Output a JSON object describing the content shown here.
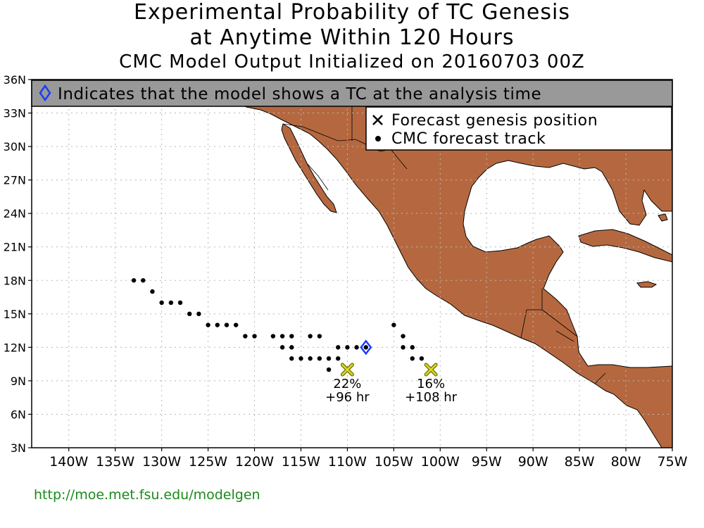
{
  "title": {
    "line1": "Experimental Probability of TC Genesis",
    "line2": "at Anytime Within 120 Hours",
    "line3": "CMC Model Output Initialized on 20160703 00Z"
  },
  "banner": {
    "text": "Indicates that the model shows a TC at the analysis time",
    "icon": "blue-diamond-icon"
  },
  "legend": {
    "genesis_label": "Forecast genesis position",
    "genesis_icon": "x-mark-icon",
    "track_label": "CMC forecast track",
    "track_icon": "dot-icon"
  },
  "axes": {
    "lat_min": 3,
    "lat_max": 36,
    "lon_min": -144,
    "lon_max": -75,
    "lat_labels": [
      {
        "v": 36,
        "t": "36N"
      },
      {
        "v": 33,
        "t": "33N"
      },
      {
        "v": 30,
        "t": "30N"
      },
      {
        "v": 27,
        "t": "27N"
      },
      {
        "v": 24,
        "t": "24N"
      },
      {
        "v": 21,
        "t": "21N"
      },
      {
        "v": 18,
        "t": "18N"
      },
      {
        "v": 15,
        "t": "15N"
      },
      {
        "v": 12,
        "t": "12N"
      },
      {
        "v": 9,
        "t": "9N"
      },
      {
        "v": 6,
        "t": "6N"
      },
      {
        "v": 3,
        "t": "3N"
      }
    ],
    "lon_labels": [
      {
        "v": -140,
        "t": "140W"
      },
      {
        "v": -135,
        "t": "135W"
      },
      {
        "v": -130,
        "t": "130W"
      },
      {
        "v": -125,
        "t": "125W"
      },
      {
        "v": -120,
        "t": "120W"
      },
      {
        "v": -115,
        "t": "115W"
      },
      {
        "v": -110,
        "t": "110W"
      },
      {
        "v": -105,
        "t": "105W"
      },
      {
        "v": -100,
        "t": "100W"
      },
      {
        "v": -95,
        "t": "95W"
      },
      {
        "v": -90,
        "t": "90W"
      },
      {
        "v": -85,
        "t": "85W"
      },
      {
        "v": -80,
        "t": "80W"
      },
      {
        "v": -75,
        "t": "75W"
      }
    ]
  },
  "colors": {
    "land": "#b5683f",
    "banner_bg": "#999999",
    "diamond": "#1a3cff",
    "genesis_fill": "#d8d820",
    "grid": "#b8b8b8"
  },
  "tracks": [
    [
      [
        -108,
        12
      ],
      [
        -109,
        12
      ],
      [
        -110,
        12
      ],
      [
        -111,
        12
      ],
      [
        -111,
        11
      ],
      [
        -112,
        11
      ],
      [
        -113,
        11
      ],
      [
        -114,
        11
      ],
      [
        -115,
        11
      ],
      [
        -116,
        11
      ],
      [
        -116,
        12
      ],
      [
        -116,
        13
      ],
      [
        -117,
        13
      ],
      [
        -117,
        12
      ],
      [
        -118,
        13
      ],
      [
        -120,
        13
      ],
      [
        -121,
        13
      ],
      [
        -122,
        14
      ],
      [
        -123,
        14
      ],
      [
        -124,
        14
      ],
      [
        -125,
        14
      ],
      [
        -126,
        15
      ],
      [
        -127,
        15
      ],
      [
        -128,
        16
      ],
      [
        -129,
        16
      ],
      [
        -130,
        16
      ],
      [
        -131,
        17
      ],
      [
        -132,
        18
      ],
      [
        -133,
        18
      ]
    ],
    [
      [
        -112,
        10
      ],
      [
        -113,
        13
      ],
      [
        -114,
        13
      ]
    ],
    [
      [
        -105,
        14
      ],
      [
        -104,
        13
      ],
      [
        -104,
        12
      ],
      [
        -103,
        12
      ],
      [
        -103,
        11
      ],
      [
        -102,
        11
      ]
    ]
  ],
  "analysis_marker": {
    "lon": -108,
    "lat": 12
  },
  "genesis": [
    {
      "lon": -110,
      "lat": 10,
      "pct": "22%",
      "hr": "+96 hr"
    },
    {
      "lon": -101,
      "lat": 10,
      "pct": "16%",
      "hr": "+108 hr"
    }
  ],
  "footer": {
    "url": "http://moe.met.fsu.edu/modelgen"
  }
}
